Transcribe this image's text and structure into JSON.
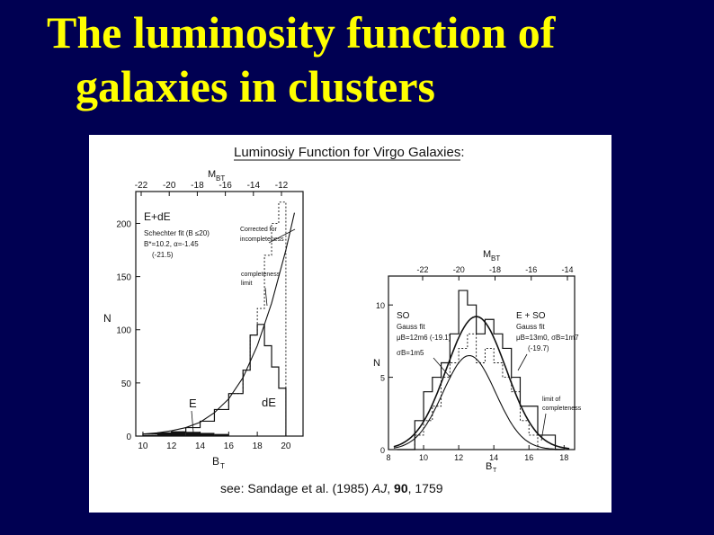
{
  "slide": {
    "title_line1": "The luminosity function of",
    "title_line2": "galaxies in clusters",
    "background_color": "#000052",
    "title_color": "#ffff00"
  },
  "figure": {
    "heading": "Luminosiy Function for Virgo Galaxies:",
    "citation_prefix": "see: Sandage et al. (1985)",
    "citation_journal": "AJ",
    "citation_volume": "90",
    "citation_pages": ", 1759"
  },
  "chart_data": [
    {
      "type": "histogram",
      "panel": "left",
      "top_axis_label": "M",
      "top_axis_label_sub": "BT",
      "top_ticks": [
        "-22",
        "-20",
        "-18",
        "-16",
        "-14",
        "-12"
      ],
      "bottom_axis_label": "B",
      "bottom_axis_label_sub": "T",
      "bottom_ticks": [
        "10",
        "12",
        "14",
        "16",
        "18",
        "20"
      ],
      "y_axis_label": "N",
      "y_ticks": [
        "0",
        "50",
        "100",
        "150",
        "200"
      ],
      "xlim": [
        9.5,
        21.2
      ],
      "ylim": [
        0,
        230
      ],
      "annotations": {
        "panel_label": "E+dE",
        "fit_text": [
          "Schechter fit (B ≤20)",
          "B*=10.2, α=-1.45",
          "(-21.5)"
        ],
        "corrected_label": [
          "Corrected for",
          "incompleteness"
        ],
        "completeness_label": [
          "completeness",
          "limit"
        ],
        "e_label": "E",
        "de_label": "dE"
      },
      "bin_edges": [
        10,
        11,
        12,
        13,
        14,
        15,
        16,
        17,
        17.5,
        18,
        18.5,
        19,
        19.5,
        20
      ],
      "counts": [
        2,
        3,
        4,
        8,
        14,
        25,
        40,
        62,
        95,
        105,
        85,
        65,
        45
      ],
      "corrected_counts": [
        2,
        3,
        4,
        8,
        14,
        25,
        40,
        62,
        95,
        120,
        170,
        200,
        220
      ],
      "e_counts": [
        1,
        3,
        4,
        4,
        3,
        2,
        0,
        0,
        0,
        0,
        0,
        0,
        0
      ],
      "schechter_curve": {
        "x": [
          10,
          11,
          12,
          13,
          14,
          15,
          16,
          17,
          18,
          19,
          20,
          20.6
        ],
        "y": [
          2,
          3,
          5,
          8,
          13,
          22,
          35,
          55,
          85,
          125,
          175,
          210
        ]
      },
      "completeness_limit_x": 19
    },
    {
      "type": "histogram",
      "panel": "right",
      "top_axis_label": "M",
      "top_axis_label_sub": "BT",
      "top_ticks": [
        "-22",
        "-20",
        "-18",
        "-16",
        "-14"
      ],
      "bottom_axis_label": "B",
      "bottom_axis_label_sub": "T",
      "bottom_ticks": [
        "8",
        "10",
        "12",
        "14",
        "16",
        "18"
      ],
      "y_axis_label": "N",
      "y_ticks": [
        "0",
        "5",
        "10"
      ],
      "xlim": [
        8,
        18.6
      ],
      "ylim": [
        0,
        12
      ],
      "annotations": {
        "s0_text": [
          "SO",
          "Gauss fit",
          "μB=12m6 (-19.1)",
          "σB=1m5"
        ],
        "e_s0_text": [
          "E + SO",
          "Gauss fit",
          "μB=13m0, σB=1m7",
          "(-19.7)"
        ],
        "limit_label": [
          "limit of",
          "completeness"
        ]
      },
      "bin_edges": [
        8.5,
        9.0,
        9.5,
        10,
        10.5,
        11,
        11.5,
        12,
        12.5,
        13,
        13.5,
        14,
        14.5,
        15,
        15.5,
        16,
        16.5,
        17,
        17.5,
        18
      ],
      "e_s0_counts": [
        0,
        0,
        2,
        4,
        5,
        6,
        8,
        11,
        10,
        8,
        9,
        8,
        7,
        5,
        3,
        3,
        1,
        1,
        0
      ],
      "s0_counts": [
        0,
        0,
        1,
        2,
        3,
        5,
        6,
        7,
        8,
        6,
        7,
        6,
        5,
        4,
        2,
        1,
        0,
        0,
        0
      ],
      "gauss_e_s0": {
        "mean": 13.0,
        "sigma": 1.7,
        "peak": 9.2
      },
      "gauss_s0": {
        "mean": 12.6,
        "sigma": 1.5,
        "peak": 6.5
      },
      "completeness_limit_x": 15.8
    }
  ]
}
